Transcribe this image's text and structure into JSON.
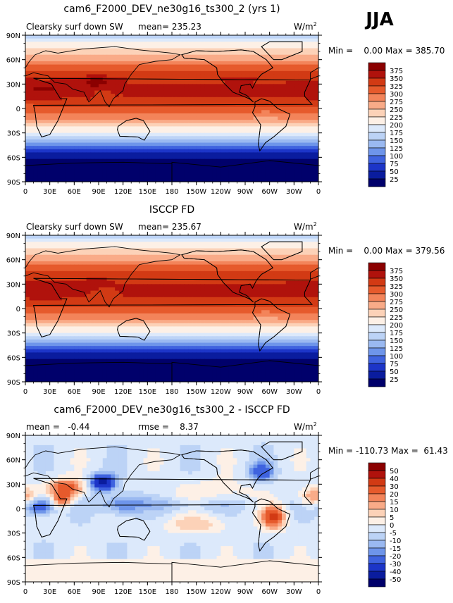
{
  "season": "JJA",
  "units": "W/m",
  "units_exp": "2",
  "chart_data": [
    {
      "type": "heatmap",
      "title": "cam6_F2000_DEV_ne30g16_ts300_2 (yrs 1)",
      "left_label": "Clearsky surf down SW",
      "mean_text": "mean= 235.23",
      "min_max_text": "Min =    0.00 Max = 385.70",
      "lat_ticks": [
        "90N",
        "60N",
        "30N",
        "0",
        "30S",
        "60S",
        "90S"
      ],
      "lon_ticks": [
        "0",
        "30E",
        "60E",
        "90E",
        "120E",
        "150E",
        "180",
        "150W",
        "120W",
        "90W",
        "60W",
        "30W",
        "0"
      ],
      "colorbar": {
        "levels": [
          "375",
          "350",
          "325",
          "300",
          "275",
          "250",
          "225",
          "200",
          "175",
          "150",
          "125",
          "100",
          "75",
          "50",
          "25"
        ],
        "colors": [
          "#8b0000",
          "#b0120c",
          "#d23a14",
          "#e65a2c",
          "#f3845a",
          "#f9ab88",
          "#fcd2b8",
          "#fdf0e6",
          "#dce9fb",
          "#bcd3f6",
          "#9ab9f1",
          "#6e95ea",
          "#3f63df",
          "#1c35c8",
          "#0a1c9e",
          "#00006b"
        ]
      },
      "field": "model"
    },
    {
      "type": "heatmap",
      "title": "ISCCP FD",
      "left_label": "Clearsky surf down SW",
      "mean_text": "mean= 235.67",
      "min_max_text": "Min =    0.00 Max = 379.56",
      "lat_ticks": [
        "90N",
        "60N",
        "30N",
        "0",
        "30S",
        "60S",
        "90S"
      ],
      "lon_ticks": [
        "0",
        "30E",
        "60E",
        "90E",
        "120E",
        "150E",
        "180",
        "150W",
        "120W",
        "90W",
        "60W",
        "30W",
        "0"
      ],
      "colorbar": {
        "levels": [
          "375",
          "350",
          "325",
          "300",
          "275",
          "250",
          "225",
          "200",
          "175",
          "150",
          "125",
          "100",
          "75",
          "50",
          "25"
        ],
        "colors": [
          "#8b0000",
          "#b0120c",
          "#d23a14",
          "#e65a2c",
          "#f3845a",
          "#f9ab88",
          "#fcd2b8",
          "#fdf0e6",
          "#dce9fb",
          "#bcd3f6",
          "#9ab9f1",
          "#6e95ea",
          "#3f63df",
          "#1c35c8",
          "#0a1c9e",
          "#00006b"
        ]
      },
      "field": "obs"
    },
    {
      "type": "heatmap",
      "title": "cam6_F2000_DEV_ne30g16_ts300_2 - ISCCP FD",
      "left_label": "mean =   -0.44",
      "mean_text": "rmse =    8.37",
      "min_max_text": "Min = -110.73 Max =  61.43",
      "lat_ticks": [
        "90N",
        "60N",
        "30N",
        "0",
        "30S",
        "60S",
        "90S"
      ],
      "lon_ticks": [
        "0",
        "30E",
        "60E",
        "90E",
        "120E",
        "150E",
        "180",
        "150W",
        "120W",
        "90W",
        "60W",
        "30W",
        "0"
      ],
      "colorbar": {
        "levels": [
          "50",
          "40",
          "30",
          "20",
          "15",
          "10",
          "5",
          "0",
          "-5",
          "-10",
          "-15",
          "-20",
          "-30",
          "-40",
          "-50"
        ],
        "colors": [
          "#8b0000",
          "#b0120c",
          "#d23a14",
          "#e65a2c",
          "#f3845a",
          "#f9ab88",
          "#fcd2b8",
          "#fdf0e6",
          "#dce9fb",
          "#bcd3f6",
          "#9ab9f1",
          "#6e95ea",
          "#3f63df",
          "#1c35c8",
          "#0a1c9e",
          "#00006b"
        ]
      },
      "field": "diff"
    }
  ]
}
